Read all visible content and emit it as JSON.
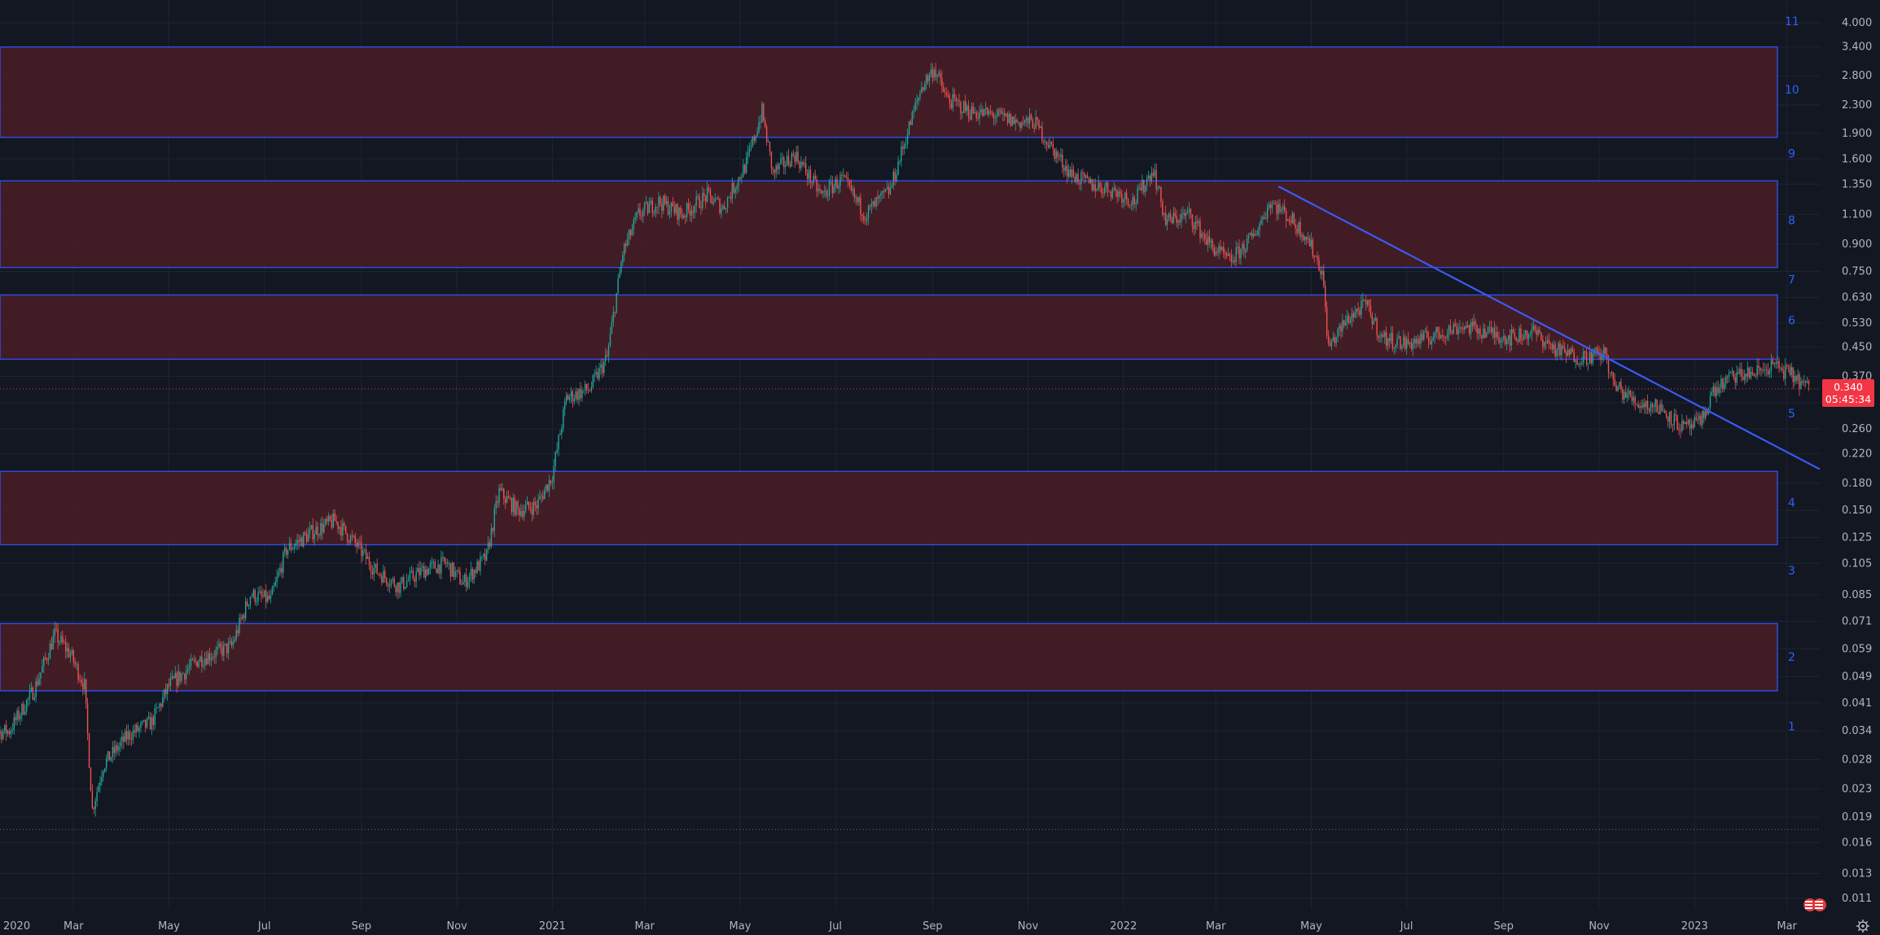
{
  "colors": {
    "background": "#131722",
    "grid": "#1f2433",
    "axis_text": "#b2b5be",
    "up_candle": "#26a69a",
    "down_candle": "#ef5350",
    "zone_fill": "#4a1d26",
    "zone_border": "#2f4fe8",
    "trendline": "#3b5bf5",
    "zone_number": "#2962ff",
    "price_tag": "#f23645"
  },
  "chart_data": {
    "type": "candlestick",
    "y_scale": "log",
    "ylim": [
      0.0107,
      4.25
    ],
    "y_ticks": [
      "4.000",
      "3.400",
      "2.800",
      "2.300",
      "1.900",
      "1.600",
      "1.350",
      "1.100",
      "0.900",
      "0.750",
      "0.630",
      "0.530",
      "0.450",
      "0.370",
      "0.310",
      "0.260",
      "0.220",
      "0.180",
      "0.150",
      "0.125",
      "0.105",
      "0.085",
      "0.071",
      "0.059",
      "0.049",
      "0.041",
      "0.034",
      "0.028",
      "0.023",
      "0.019",
      "0.016",
      "0.013",
      "0.011"
    ],
    "x_range": [
      "2020-01-01",
      "2023-03-22"
    ],
    "x_ticks": [
      {
        "label": "2020",
        "date": "2020-01-01"
      },
      {
        "label": "Mar",
        "date": "2020-03-01"
      },
      {
        "label": "May",
        "date": "2020-05-01"
      },
      {
        "label": "Jul",
        "date": "2020-07-01"
      },
      {
        "label": "Sep",
        "date": "2020-09-01"
      },
      {
        "label": "Nov",
        "date": "2020-11-01"
      },
      {
        "label": "2021",
        "date": "2021-01-01"
      },
      {
        "label": "Mar",
        "date": "2021-03-01"
      },
      {
        "label": "May",
        "date": "2021-05-01"
      },
      {
        "label": "Jul",
        "date": "2021-07-01"
      },
      {
        "label": "Sep",
        "date": "2021-09-01"
      },
      {
        "label": "Nov",
        "date": "2021-11-01"
      },
      {
        "label": "2022",
        "date": "2022-01-01"
      },
      {
        "label": "Mar",
        "date": "2022-03-01"
      },
      {
        "label": "May",
        "date": "2022-05-01"
      },
      {
        "label": "Jul",
        "date": "2022-07-01"
      },
      {
        "label": "Sep",
        "date": "2022-09-01"
      },
      {
        "label": "Nov",
        "date": "2022-11-01"
      },
      {
        "label": "2023",
        "date": "2023-01-01"
      },
      {
        "label": "Mar",
        "date": "2023-03-01"
      }
    ],
    "price_path": [
      [
        "2020-01-01",
        0.033
      ],
      [
        "2020-01-20",
        0.034
      ],
      [
        "2020-02-05",
        0.045
      ],
      [
        "2020-02-18",
        0.065
      ],
      [
        "2020-02-28",
        0.057
      ],
      [
        "2020-03-08",
        0.046
      ],
      [
        "2020-03-13",
        0.02
      ],
      [
        "2020-03-20",
        0.027
      ],
      [
        "2020-04-05",
        0.033
      ],
      [
        "2020-04-20",
        0.036
      ],
      [
        "2020-05-01",
        0.046
      ],
      [
        "2020-05-20",
        0.055
      ],
      [
        "2020-06-10",
        0.06
      ],
      [
        "2020-06-22",
        0.085
      ],
      [
        "2020-07-05",
        0.082
      ],
      [
        "2020-07-15",
        0.115
      ],
      [
        "2020-08-01",
        0.13
      ],
      [
        "2020-08-15",
        0.14
      ],
      [
        "2020-08-28",
        0.12
      ],
      [
        "2020-09-10",
        0.1
      ],
      [
        "2020-09-25",
        0.09
      ],
      [
        "2020-10-10",
        0.1
      ],
      [
        "2020-10-25",
        0.105
      ],
      [
        "2020-11-05",
        0.092
      ],
      [
        "2020-11-20",
        0.11
      ],
      [
        "2020-11-28",
        0.17
      ],
      [
        "2020-12-10",
        0.15
      ],
      [
        "2020-12-22",
        0.155
      ],
      [
        "2021-01-01",
        0.19
      ],
      [
        "2021-01-10",
        0.32
      ],
      [
        "2021-01-25",
        0.34
      ],
      [
        "2021-02-05",
        0.42
      ],
      [
        "2021-02-15",
        0.85
      ],
      [
        "2021-02-25",
        1.1
      ],
      [
        "2021-03-10",
        1.2
      ],
      [
        "2021-03-25",
        1.1
      ],
      [
        "2021-04-10",
        1.25
      ],
      [
        "2021-04-20",
        1.15
      ],
      [
        "2021-05-05",
        1.55
      ],
      [
        "2021-05-15",
        2.2
      ],
      [
        "2021-05-22",
        1.45
      ],
      [
        "2021-06-05",
        1.65
      ],
      [
        "2021-06-22",
        1.25
      ],
      [
        "2021-07-05",
        1.4
      ],
      [
        "2021-07-20",
        1.1
      ],
      [
        "2021-08-05",
        1.3
      ],
      [
        "2021-08-15",
        1.85
      ],
      [
        "2021-08-25",
        2.6
      ],
      [
        "2021-09-02",
        2.95
      ],
      [
        "2021-09-10",
        2.4
      ],
      [
        "2021-09-25",
        2.2
      ],
      [
        "2021-10-10",
        2.15
      ],
      [
        "2021-10-25",
        2.05
      ],
      [
        "2021-11-05",
        2.05
      ],
      [
        "2021-11-15",
        1.75
      ],
      [
        "2021-11-28",
        1.45
      ],
      [
        "2021-12-10",
        1.35
      ],
      [
        "2021-12-25",
        1.3
      ],
      [
        "2022-01-08",
        1.2
      ],
      [
        "2022-01-20",
        1.5
      ],
      [
        "2022-01-28",
        1.05
      ],
      [
        "2022-02-12",
        1.1
      ],
      [
        "2022-02-25",
        0.9
      ],
      [
        "2022-03-10",
        0.8
      ],
      [
        "2022-03-25",
        0.95
      ],
      [
        "2022-04-05",
        1.2
      ],
      [
        "2022-04-15",
        1.1
      ],
      [
        "2022-04-28",
        0.95
      ],
      [
        "2022-05-08",
        0.75
      ],
      [
        "2022-05-12",
        0.45
      ],
      [
        "2022-05-25",
        0.55
      ],
      [
        "2022-06-05",
        0.6
      ],
      [
        "2022-06-15",
        0.48
      ],
      [
        "2022-07-01",
        0.46
      ],
      [
        "2022-07-15",
        0.48
      ],
      [
        "2022-08-05",
        0.52
      ],
      [
        "2022-08-20",
        0.5
      ],
      [
        "2022-09-05",
        0.48
      ],
      [
        "2022-09-20",
        0.5
      ],
      [
        "2022-10-05",
        0.44
      ],
      [
        "2022-10-20",
        0.42
      ],
      [
        "2022-11-05",
        0.43
      ],
      [
        "2022-11-10",
        0.35
      ],
      [
        "2022-11-25",
        0.31
      ],
      [
        "2022-12-10",
        0.3
      ],
      [
        "2022-12-25",
        0.26
      ],
      [
        "2023-01-05",
        0.27
      ],
      [
        "2023-01-12",
        0.33
      ],
      [
        "2023-01-25",
        0.37
      ],
      [
        "2023-02-10",
        0.38
      ],
      [
        "2023-02-20",
        0.4
      ],
      [
        "2023-03-05",
        0.37
      ],
      [
        "2023-03-15",
        0.34
      ]
    ],
    "zones": [
      {
        "number": "10",
        "top": 3.4,
        "bottom": 1.85
      },
      {
        "number": "8",
        "top": 1.38,
        "bottom": 0.77
      },
      {
        "number": "6",
        "top": 0.64,
        "bottom": 0.415
      },
      {
        "number": "4",
        "top": 0.195,
        "bottom": 0.119
      },
      {
        "number": "2",
        "top": 0.07,
        "bottom": 0.0445
      }
    ],
    "zone_labels": [
      {
        "text": "11",
        "price": 4.05
      },
      {
        "text": "10",
        "price": 2.55
      },
      {
        "text": "9",
        "price": 1.66
      },
      {
        "text": "8",
        "price": 1.06
      },
      {
        "text": "7",
        "price": 0.71
      },
      {
        "text": "6",
        "price": 0.54
      },
      {
        "text": "5",
        "price": 0.288
      },
      {
        "text": "4",
        "price": 0.158
      },
      {
        "text": "3",
        "price": 0.1
      },
      {
        "text": "2",
        "price": 0.056
      },
      {
        "text": "1",
        "price": 0.035
      }
    ],
    "trendline": {
      "start": {
        "date": "2022-04-10",
        "price": 1.33
      },
      "end": {
        "date": "2023-03-22",
        "price": 0.198
      }
    },
    "current_price": {
      "value": "0.340",
      "countdown": "05:45:34",
      "level": 0.34
    },
    "dotted_low": 0.0175
  }
}
